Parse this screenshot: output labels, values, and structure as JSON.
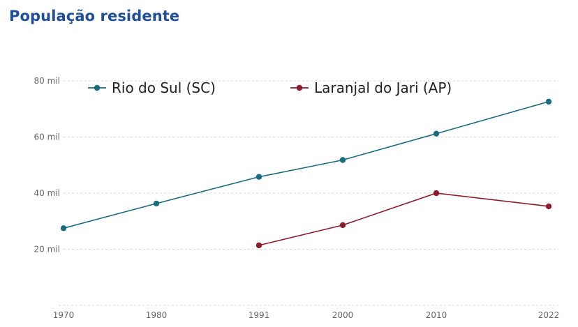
{
  "page": {
    "title": "População residente"
  },
  "chart_data": {
    "type": "line",
    "title": "",
    "xlabel": "",
    "ylabel": "",
    "x": [
      "1970",
      "1980",
      "1991",
      "2000",
      "2010",
      "2022"
    ],
    "ylim": [
      0,
      80000
    ],
    "yticks": [
      20000,
      40000,
      60000,
      80000
    ],
    "ytick_labels": [
      "20 mil",
      "40 mil",
      "60 mil",
      "80 mil"
    ],
    "grid": true,
    "legend_position": "top",
    "series": [
      {
        "name": "Rio do Sul (SC)",
        "color": "#1a6b80",
        "values": [
          27500,
          36300,
          45800,
          51800,
          61200,
          72600
        ]
      },
      {
        "name": "Laranjal do Jari (AP)",
        "color": "#8c1c2c",
        "values": [
          null,
          null,
          21400,
          28600,
          40000,
          35300
        ]
      }
    ]
  }
}
